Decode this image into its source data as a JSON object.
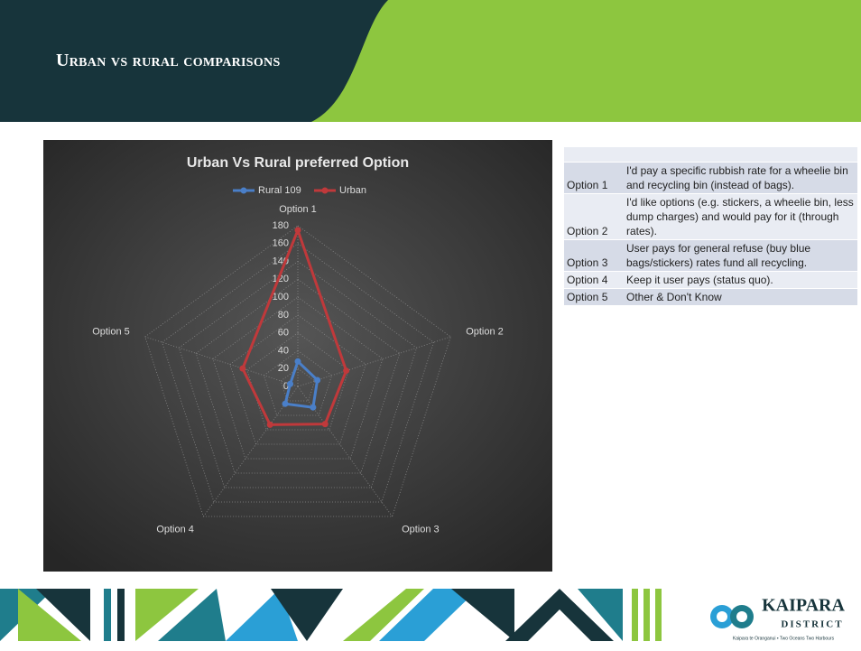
{
  "header": {
    "title": "Urban vs rural comparisons"
  },
  "chart_data": {
    "type": "radar",
    "title": "Urban Vs Rural preferred Option",
    "categories": [
      "Option 1",
      "Option 2",
      "Option 3",
      "Option 4",
      "Option 5"
    ],
    "series": [
      {
        "name": "Rural 109",
        "color": "#4a7fc8",
        "values": [
          28,
          23,
          29,
          24,
          9
        ]
      },
      {
        "name": "Urban",
        "color": "#c0393b",
        "values": [
          175,
          57,
          52,
          53,
          65
        ]
      }
    ],
    "ylim": [
      0,
      180
    ],
    "yticks": [
      0,
      20,
      40,
      60,
      80,
      100,
      120,
      140,
      160,
      180
    ],
    "grid": true,
    "legend": "top"
  },
  "table": {
    "rows": [
      [
        "Option 1",
        "I'd pay a specific rubbish rate for a wheelie bin and recycling bin (instead of bags)."
      ],
      [
        "Option 2",
        "I'd like options (e.g. stickers, a wheelie bin, less dump charges) and would pay for it (through rates)."
      ],
      [
        "Option 3",
        "User pays for general refuse (buy blue bags/stickers) rates fund all recycling."
      ],
      [
        "Option 4",
        "Keep it user pays (status quo)."
      ],
      [
        "Option 5",
        "Other & Don't Know"
      ]
    ]
  },
  "footer": {
    "logo": "KAIPARA",
    "logo_sub": "DISTRICT",
    "tagline": "Kaipara te Oranganui • Two Oceans Two Harbours"
  }
}
